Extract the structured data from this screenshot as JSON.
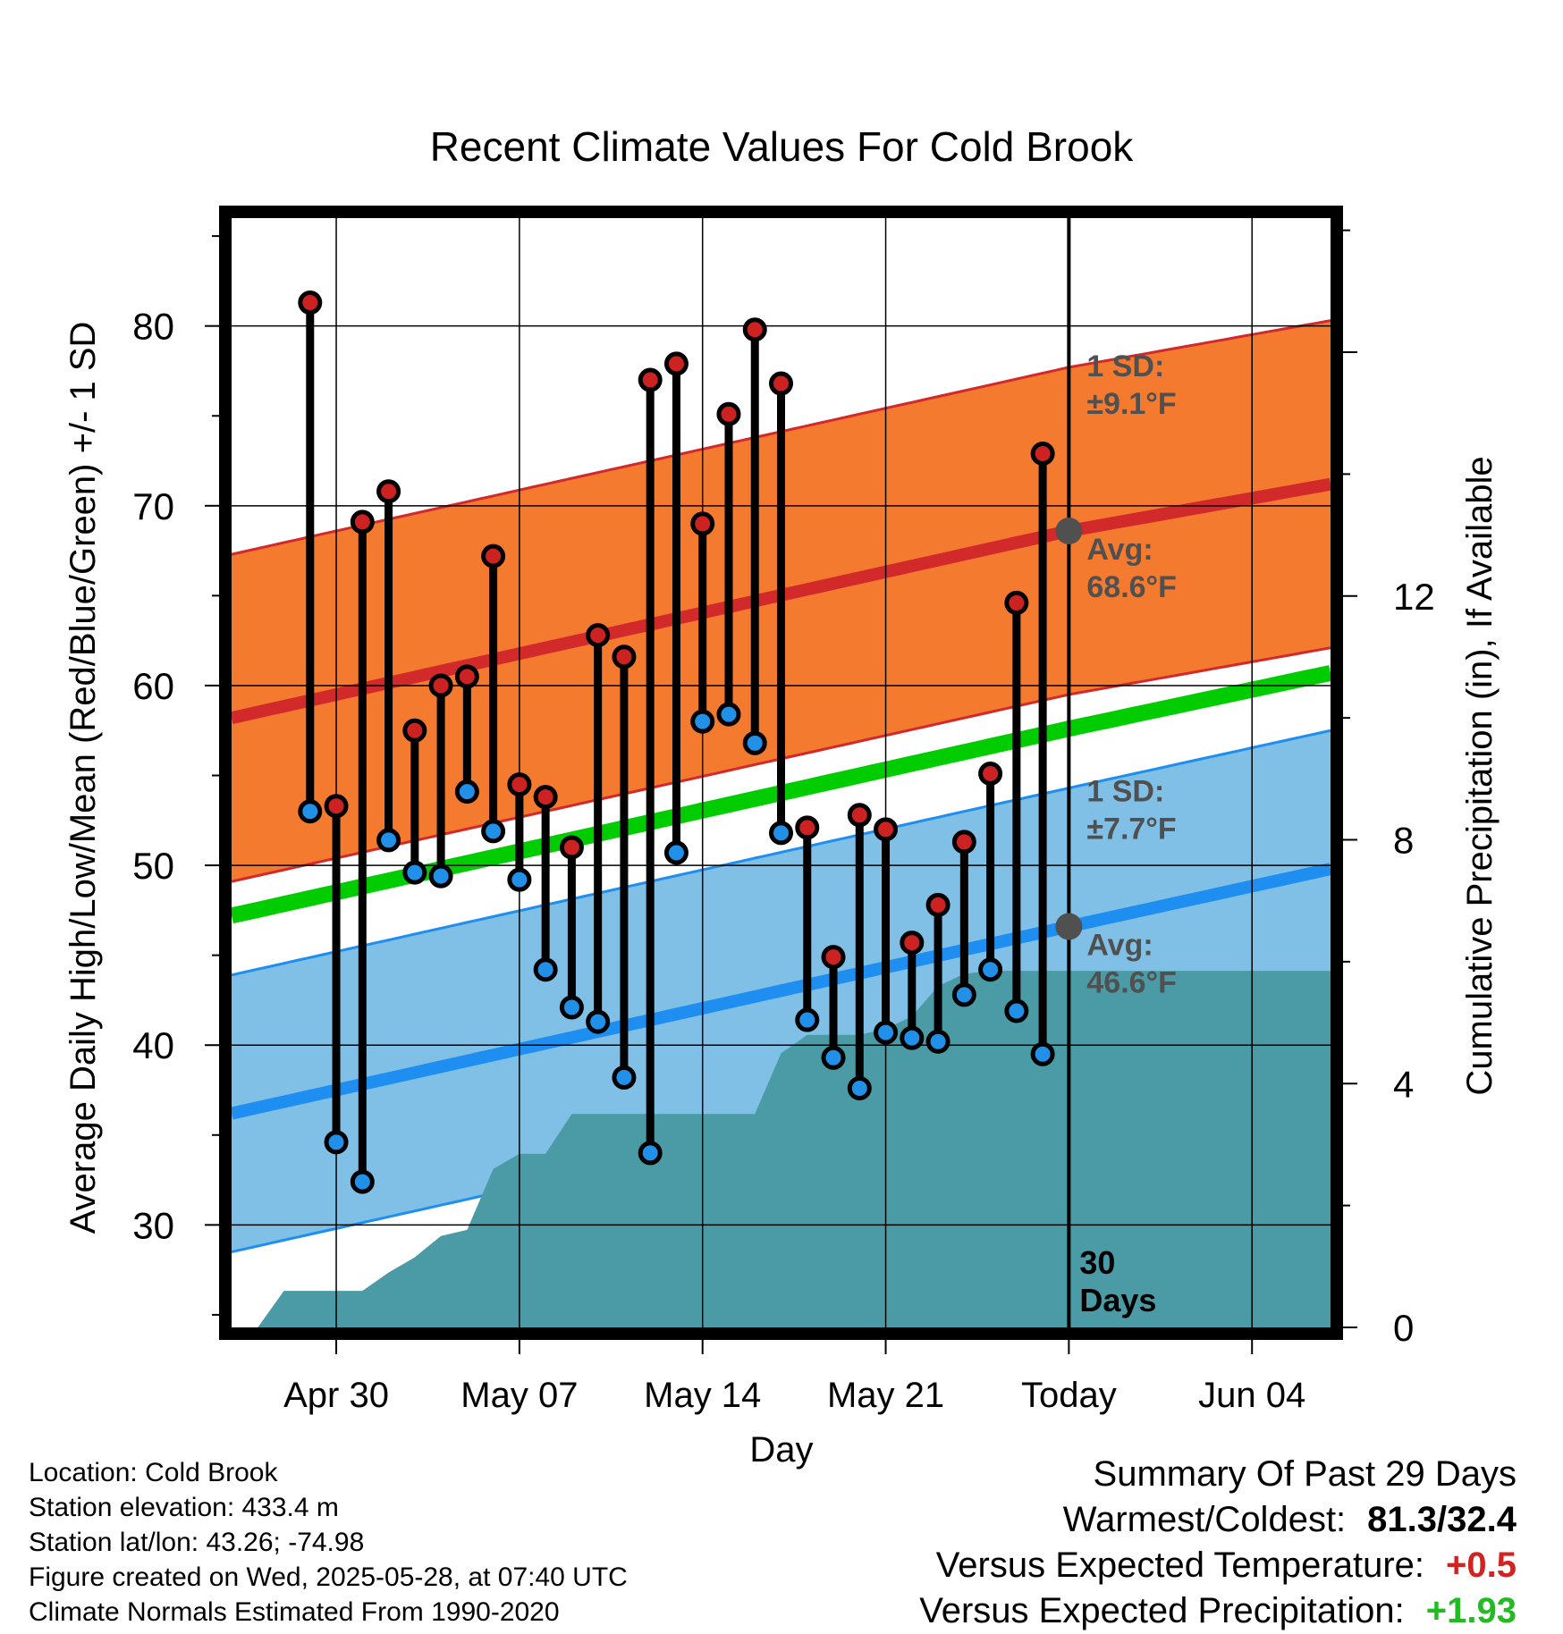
{
  "chart_data": {
    "type": "line",
    "title": "Recent Climate Values For Cold Brook",
    "xlabel": "Day",
    "ylabel": "Average Daily High/Low/Mean (Red/Blue/Green) +/- 1 SD",
    "y2label": "Cumulative Precipitation (in), If Available",
    "ylim": [
      24.3,
      86.0
    ],
    "y2lim": [
      0,
      18.2
    ],
    "xlim": [
      "2025-04-26",
      "2025-06-07"
    ],
    "xticks": [
      {
        "date": "2025-04-30",
        "label": "Apr 30"
      },
      {
        "date": "2025-05-07",
        "label": "May 07"
      },
      {
        "date": "2025-05-14",
        "label": "May 14"
      },
      {
        "date": "2025-05-21",
        "label": "May 21"
      },
      {
        "date": "2025-05-28",
        "label": "Today"
      },
      {
        "date": "2025-06-04",
        "label": "Jun 04"
      }
    ],
    "yticks": [
      30,
      40,
      50,
      60,
      70,
      80
    ],
    "y2ticks": [
      0,
      4,
      8,
      12
    ],
    "grid": true,
    "today": "2025-05-28",
    "today_label": [
      "30",
      "Days"
    ],
    "highs": [
      {
        "date": "2025-04-29",
        "high": 81.3,
        "low": 53.0
      },
      {
        "date": "2025-04-30",
        "high": 53.3,
        "low": 34.6
      },
      {
        "date": "2025-05-01",
        "high": 69.1,
        "low": 32.4
      },
      {
        "date": "2025-05-02",
        "high": 70.8,
        "low": 51.4
      },
      {
        "date": "2025-05-03",
        "high": 57.5,
        "low": 49.6
      },
      {
        "date": "2025-05-04",
        "high": 60.0,
        "low": 49.4
      },
      {
        "date": "2025-05-05",
        "high": 60.5,
        "low": 54.1
      },
      {
        "date": "2025-05-06",
        "high": 67.2,
        "low": 51.9
      },
      {
        "date": "2025-05-07",
        "high": 54.5,
        "low": 49.2
      },
      {
        "date": "2025-05-08",
        "high": 53.8,
        "low": 44.2
      },
      {
        "date": "2025-05-09",
        "high": 51.0,
        "low": 42.1
      },
      {
        "date": "2025-05-10",
        "high": 62.8,
        "low": 41.3
      },
      {
        "date": "2025-05-11",
        "high": 61.6,
        "low": 38.2
      },
      {
        "date": "2025-05-12",
        "high": 77.0,
        "low": 34.0
      },
      {
        "date": "2025-05-13",
        "high": 77.9,
        "low": 50.7
      },
      {
        "date": "2025-05-14",
        "high": 69.0,
        "low": 58.0
      },
      {
        "date": "2025-05-15",
        "high": 75.1,
        "low": 58.4
      },
      {
        "date": "2025-05-16",
        "high": 79.8,
        "low": 56.8
      },
      {
        "date": "2025-05-17",
        "high": 76.8,
        "low": 51.8
      },
      {
        "date": "2025-05-18",
        "high": 52.1,
        "low": 41.4
      },
      {
        "date": "2025-05-19",
        "high": 44.9,
        "low": 39.3
      },
      {
        "date": "2025-05-20",
        "high": 52.8,
        "low": 37.6
      },
      {
        "date": "2025-05-21",
        "high": 52.0,
        "low": 40.7
      },
      {
        "date": "2025-05-22",
        "high": 45.7,
        "low": 40.4
      },
      {
        "date": "2025-05-23",
        "high": 47.8,
        "low": 40.2
      },
      {
        "date": "2025-05-24",
        "high": 51.3,
        "low": 42.8
      },
      {
        "date": "2025-05-25",
        "high": 55.1,
        "low": 44.2
      },
      {
        "date": "2025-05-26",
        "high": 64.6,
        "low": 41.9
      },
      {
        "date": "2025-05-27",
        "high": 72.9,
        "low": 39.5
      }
    ],
    "normals": {
      "dates": [
        "2025-04-26",
        "2025-05-28",
        "2025-06-07"
      ],
      "avg_high": [
        58.2,
        68.6,
        71.2
      ],
      "avg_high_sd": 9.1,
      "avg_low": [
        36.2,
        46.6,
        49.8
      ],
      "avg_low_sd": 7.7,
      "avg_mean": [
        47.2,
        57.6,
        60.7
      ]
    },
    "precip_cumulative": [
      {
        "date": "2025-04-27",
        "value": 0.0
      },
      {
        "date": "2025-04-28",
        "value": 0.6
      },
      {
        "date": "2025-04-29",
        "value": 0.6
      },
      {
        "date": "2025-04-30",
        "value": 0.6
      },
      {
        "date": "2025-05-01",
        "value": 0.6
      },
      {
        "date": "2025-05-02",
        "value": 0.9
      },
      {
        "date": "2025-05-03",
        "value": 1.15
      },
      {
        "date": "2025-05-04",
        "value": 1.5
      },
      {
        "date": "2025-05-05",
        "value": 1.6
      },
      {
        "date": "2025-05-06",
        "value": 2.6
      },
      {
        "date": "2025-05-07",
        "value": 2.85
      },
      {
        "date": "2025-05-08",
        "value": 2.85
      },
      {
        "date": "2025-05-09",
        "value": 3.5
      },
      {
        "date": "2025-05-10",
        "value": 3.5
      },
      {
        "date": "2025-05-11",
        "value": 3.5
      },
      {
        "date": "2025-05-12",
        "value": 3.5
      },
      {
        "date": "2025-05-13",
        "value": 3.5
      },
      {
        "date": "2025-05-14",
        "value": 3.5
      },
      {
        "date": "2025-05-15",
        "value": 3.5
      },
      {
        "date": "2025-05-16",
        "value": 3.5
      },
      {
        "date": "2025-05-17",
        "value": 4.5
      },
      {
        "date": "2025-05-18",
        "value": 4.8
      },
      {
        "date": "2025-05-19",
        "value": 4.8
      },
      {
        "date": "2025-05-20",
        "value": 4.8
      },
      {
        "date": "2025-05-21",
        "value": 4.9
      },
      {
        "date": "2025-05-22",
        "value": 5.1
      },
      {
        "date": "2025-05-23",
        "value": 5.6
      },
      {
        "date": "2025-05-24",
        "value": 5.8
      },
      {
        "date": "2025-05-25",
        "value": 5.85
      },
      {
        "date": "2025-05-26",
        "value": 5.85
      },
      {
        "date": "2025-05-27",
        "value": 5.85
      },
      {
        "date": "2025-05-28",
        "value": 5.85
      },
      {
        "date": "2025-06-07",
        "value": 5.85
      }
    ],
    "annotations": {
      "high_sd_label": [
        "1 SD:",
        "±9.1°F"
      ],
      "high_avg_label": [
        "Avg:",
        "68.6°F"
      ],
      "low_sd_label": [
        "1 SD:",
        "±7.7°F"
      ],
      "low_avg_label": [
        "Avg:",
        "46.6°F"
      ]
    },
    "colors": {
      "high_band": "#F47A2F",
      "high_line": "#D2292B",
      "low_band": "#80C0E6",
      "low_line": "#1E8FF0",
      "mean_line": "#00CC00",
      "precip": "#4A9BA5",
      "high_dot": "#CC2222",
      "low_dot": "#2090E8",
      "annotation": "#505050"
    }
  },
  "info": {
    "location": "Location: Cold Brook",
    "elevation": "Station elevation: 433.4 m",
    "latlon": "Station lat/lon: 43.26; -74.98",
    "created": "Figure created on Wed, 2025-05-28, at 07:40 UTC",
    "normals": "Climate Normals Estimated From 1990-2020"
  },
  "summary": {
    "title": "Summary Of Past 29 Days",
    "warmest_label": "Warmest/Coldest:",
    "warmest_value": "81.3/32.4",
    "temp_label": "Versus Expected Temperature:",
    "temp_value": "+0.5",
    "temp_color": "#D22222",
    "precip_label": "Versus Expected Precipitation:",
    "precip_value": "+1.93",
    "precip_color": "#22BB22"
  }
}
